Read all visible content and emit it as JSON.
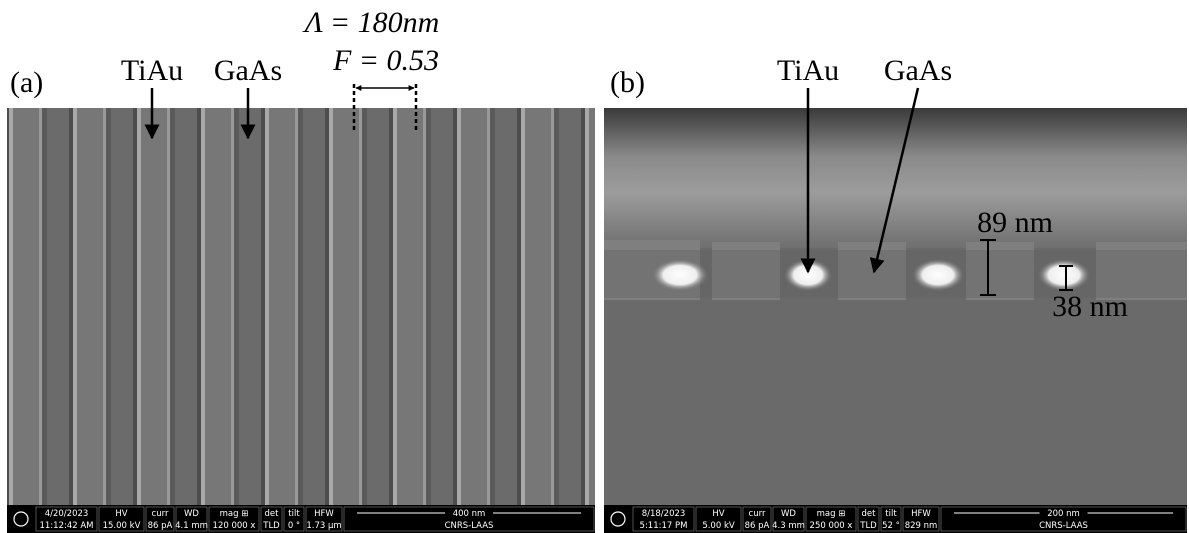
{
  "panels": [
    {
      "label": "(a)",
      "annotations": {
        "metal": "TiAu",
        "semiconductor": "GaAs",
        "period": "Λ = 180nm",
        "fill_factor": "F = 0.53"
      },
      "info_bar": {
        "date": "4/20/2023",
        "time": "11:12:42 AM",
        "fields": [
          {
            "name": "HV",
            "value": "15.00 kV"
          },
          {
            "name": "curr",
            "value": "86 pA"
          },
          {
            "name": "WD",
            "value": "4.1 mm"
          },
          {
            "name": "mag ⊞",
            "value": "120 000 x"
          },
          {
            "name": "det",
            "value": "TLD"
          },
          {
            "name": "tilt",
            "value": "0 °"
          },
          {
            "name": "HFW",
            "value": "1.73 μm"
          }
        ],
        "scale": "400 nm",
        "lab": "CNRS-LAAS"
      }
    },
    {
      "label": "(b)",
      "annotations": {
        "metal": "TiAu",
        "semiconductor": "GaAs",
        "height": "89 nm",
        "metal_thickness": "38 nm"
      },
      "info_bar": {
        "date": "8/18/2023",
        "time": "5:11:17 PM",
        "fields": [
          {
            "name": "HV",
            "value": "5.00 kV"
          },
          {
            "name": "curr",
            "value": "86 pA"
          },
          {
            "name": "WD",
            "value": "4.3 mm"
          },
          {
            "name": "mag ⊞",
            "value": "250 000 x"
          },
          {
            "name": "det",
            "value": "TLD"
          },
          {
            "name": "tilt",
            "value": "52 °"
          },
          {
            "name": "HFW",
            "value": "829 nm"
          }
        ],
        "scale": "200 nm",
        "lab": "CNRS-LAAS"
      }
    }
  ]
}
